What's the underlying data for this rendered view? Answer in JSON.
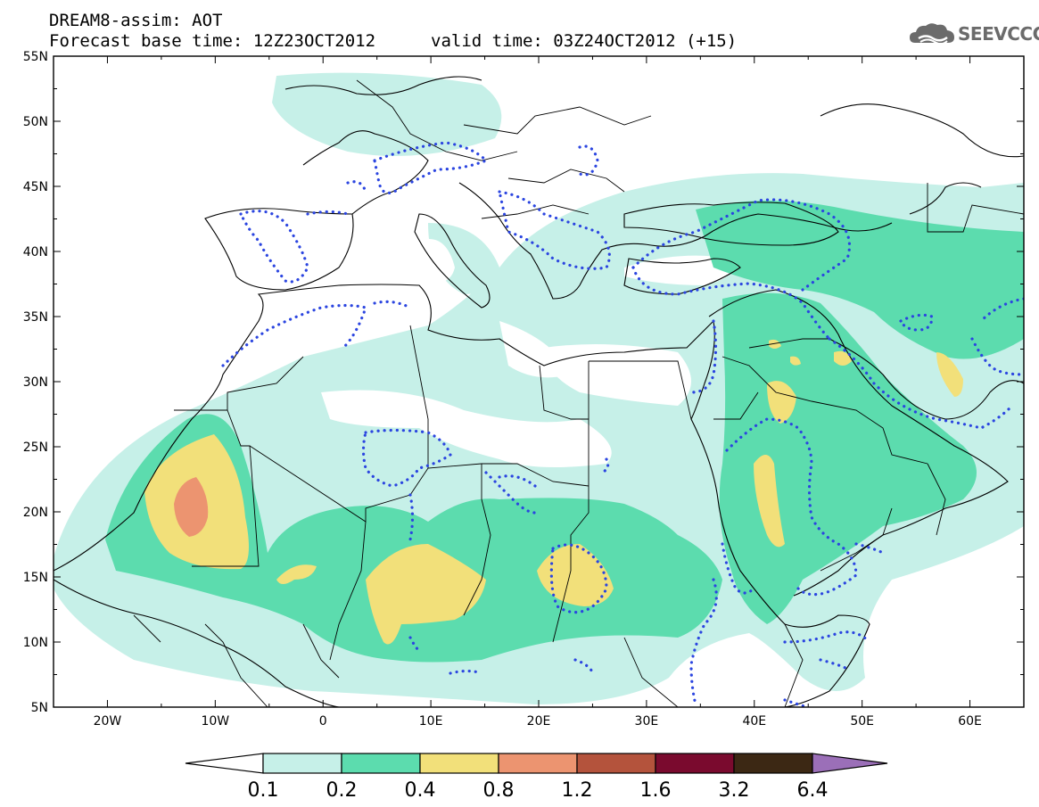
{
  "header": {
    "model_title": "DREAM8-assim: AOT",
    "base_time": "Forecast base time: 12Z23OCT2012",
    "valid_time": "valid time: 03Z24OCT2012 (+15)"
  },
  "logo": {
    "text": "SEEVCCC",
    "icon": "cloud-logo-icon"
  },
  "map": {
    "lon_range": [
      -25,
      65
    ],
    "lat_range": [
      5,
      55
    ],
    "lon_ticks": [
      {
        "value": -20,
        "label": "20W"
      },
      {
        "value": -10,
        "label": "10W"
      },
      {
        "value": 0,
        "label": "0"
      },
      {
        "value": 10,
        "label": "10E"
      },
      {
        "value": 20,
        "label": "20E"
      },
      {
        "value": 30,
        "label": "30E"
      },
      {
        "value": 40,
        "label": "40E"
      },
      {
        "value": 50,
        "label": "50E"
      },
      {
        "value": 60,
        "label": "60E"
      }
    ],
    "lat_ticks": [
      {
        "value": 5,
        "label": "5N"
      },
      {
        "value": 10,
        "label": "10N"
      },
      {
        "value": 15,
        "label": "15N"
      },
      {
        "value": 20,
        "label": "20N"
      },
      {
        "value": 25,
        "label": "25N"
      },
      {
        "value": 30,
        "label": "30N"
      },
      {
        "value": 35,
        "label": "35N"
      },
      {
        "value": 40,
        "label": "40N"
      },
      {
        "value": 45,
        "label": "45N"
      },
      {
        "value": 50,
        "label": "50N"
      },
      {
        "value": 55,
        "label": "55N"
      }
    ]
  },
  "colorbar": {
    "bins": [
      {
        "color": "#c6f0e8"
      },
      {
        "color": "#5cdcae"
      },
      {
        "color": "#f2e07a"
      },
      {
        "color": "#ec9470"
      },
      {
        "color": "#b4533c"
      },
      {
        "color": "#7a0a2e"
      },
      {
        "color": "#3c2814"
      }
    ],
    "under_color": "#ffffff",
    "over_color": "#9b6fb8",
    "labels": [
      "0.1",
      "0.2",
      "0.4",
      "0.8",
      "1.2",
      "1.6",
      "3.2",
      "6.4"
    ]
  },
  "colors": {
    "contour_dots": "#2b45e0",
    "coastline": "#000000"
  }
}
